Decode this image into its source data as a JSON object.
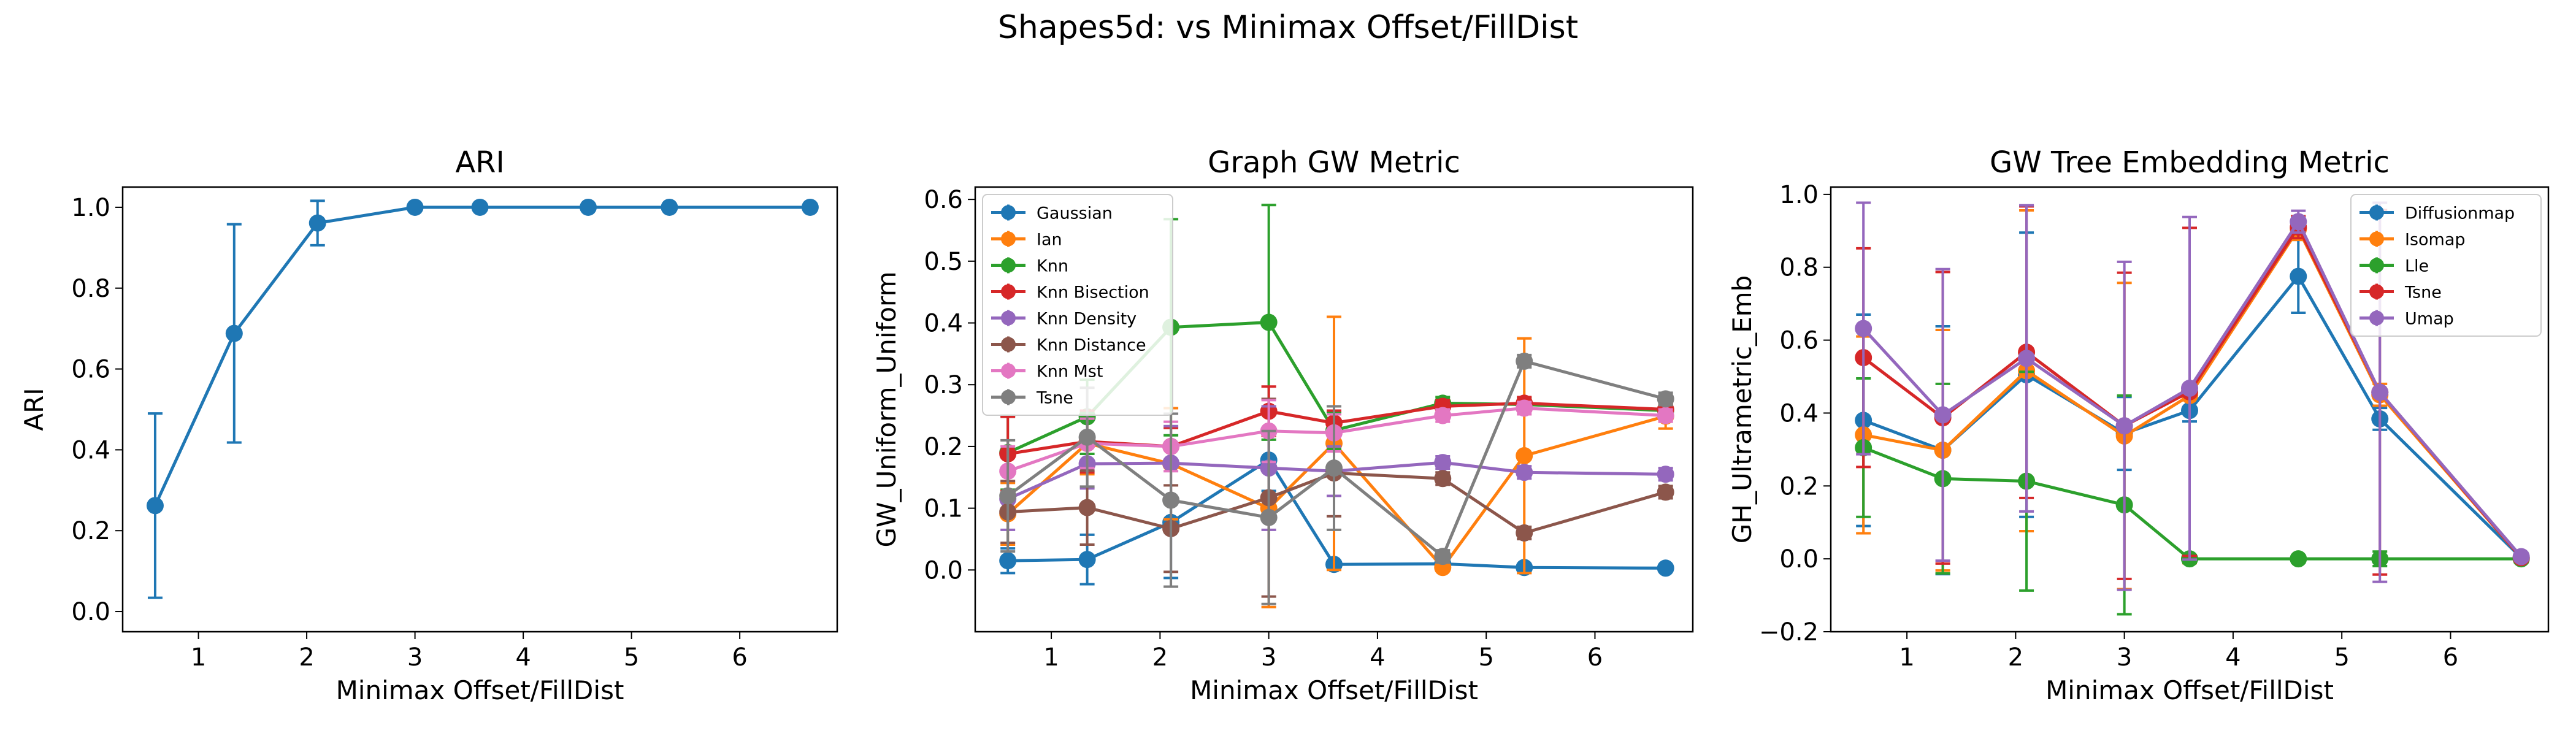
{
  "figure": {
    "suptitle": "Shapes5d: vs Minimax Offset/FillDist"
  },
  "chart_data": [
    {
      "type": "line",
      "title": "ARI",
      "xlabel": "Minimax Offset/FillDist",
      "ylabel": "ARI",
      "xlim": [
        0.3,
        6.9
      ],
      "ylim": [
        -0.05,
        1.05
      ],
      "xticks": [
        1,
        2,
        3,
        4,
        5,
        6
      ],
      "yticks": [
        0.0,
        0.2,
        0.4,
        0.6,
        0.8,
        1.0
      ],
      "ytick_format": "0.0",
      "grid": false,
      "x": [
        0.6,
        1.33,
        2.1,
        3.0,
        3.6,
        4.6,
        5.35,
        6.65
      ],
      "series": [
        {
          "name": "",
          "color": "#1f77b4",
          "values": [
            0.262,
            0.688,
            0.961,
            1.0,
            1.0,
            1.0,
            1.0,
            1.0
          ],
          "err": [
            0.228,
            0.27,
            0.055,
            0,
            0,
            0,
            0,
            0
          ]
        }
      ]
    },
    {
      "type": "line",
      "title": "Graph GW Metric",
      "xlabel": "Minimax Offset/FillDist",
      "ylabel": "GW_Uniform_Uniform",
      "xlim": [
        0.3,
        6.9
      ],
      "ylim": [
        -0.1,
        0.62
      ],
      "xticks": [
        1,
        2,
        3,
        4,
        5,
        6
      ],
      "yticks": [
        0.0,
        0.1,
        0.2,
        0.3,
        0.4,
        0.5,
        0.6
      ],
      "ytick_format": "0.0",
      "grid": false,
      "legend": "upper-left",
      "x": [
        0.6,
        1.33,
        2.1,
        3.0,
        3.6,
        4.6,
        5.35,
        6.65
      ],
      "series": [
        {
          "name": "Gaussian",
          "color": "#1f77b4",
          "values": [
            0.015,
            0.017,
            0.077,
            0.178,
            0.009,
            0.01,
            0.004,
            0.003
          ],
          "err": [
            0.02,
            0.04,
            0.09,
            0.05,
            0.005,
            0.005,
            0.003,
            0.003
          ]
        },
        {
          "name": "Ian",
          "color": "#ff7f0e",
          "values": [
            0.091,
            0.205,
            0.172,
            0.1,
            0.205,
            0.004,
            0.185,
            0.249
          ],
          "err": [
            0.05,
            0.05,
            0.09,
            0.16,
            0.205,
            0.005,
            0.19,
            0.02
          ]
        },
        {
          "name": "Knn",
          "color": "#2ca02c",
          "values": [
            0.19,
            0.248,
            0.393,
            0.401,
            0.226,
            0.27,
            0.268,
            0.258
          ],
          "err": [
            0.06,
            0.06,
            0.175,
            0.19,
            0.03,
            0.01,
            0.01,
            0.01
          ]
        },
        {
          "name": "Knn Bisection",
          "color": "#d62728",
          "values": [
            0.188,
            0.208,
            0.2,
            0.257,
            0.238,
            0.265,
            0.27,
            0.26
          ],
          "err": [
            0.06,
            0.05,
            0.03,
            0.04,
            0.02,
            0.01,
            0.01,
            0.01
          ]
        },
        {
          "name": "Knn Density",
          "color": "#9467bd",
          "values": [
            0.115,
            0.172,
            0.173,
            0.165,
            0.16,
            0.174,
            0.158,
            0.155
          ],
          "err": [
            0.05,
            0.04,
            0.06,
            0.1,
            0.04,
            0.01,
            0.01,
            0.01
          ]
        },
        {
          "name": "Knn Distance",
          "color": "#8c564b",
          "values": [
            0.094,
            0.101,
            0.067,
            0.117,
            0.157,
            0.148,
            0.06,
            0.126
          ],
          "err": [
            0.05,
            0.06,
            0.07,
            0.16,
            0.07,
            0.01,
            0.01,
            0.01
          ]
        },
        {
          "name": "Knn Mst",
          "color": "#e377c2",
          "values": [
            0.16,
            0.205,
            0.2,
            0.225,
            0.222,
            0.25,
            0.262,
            0.25
          ],
          "err": [
            0.04,
            0.04,
            0.04,
            0.05,
            0.03,
            0.01,
            0.01,
            0.01
          ]
        },
        {
          "name": "Tsne",
          "color": "#7f7f7f",
          "values": [
            0.12,
            0.215,
            0.113,
            0.085,
            0.165,
            0.022,
            0.338,
            0.277
          ],
          "err": [
            0.09,
            0.08,
            0.14,
            0.14,
            0.1,
            0.01,
            0.01,
            0.01
          ]
        }
      ]
    },
    {
      "type": "line",
      "title": "GW Tree Embedding Metric",
      "xlabel": "Minimax Offset/FillDist",
      "ylabel": "GH_Ultrametric_Emb",
      "xlim": [
        0.3,
        6.9
      ],
      "ylim": [
        -0.2,
        1.02
      ],
      "xticks": [
        1,
        2,
        3,
        4,
        5,
        6
      ],
      "yticks": [
        -0.2,
        0.0,
        0.2,
        0.4,
        0.6,
        0.8,
        1.0
      ],
      "ytick_format": "0.0",
      "grid": false,
      "legend": "upper-right",
      "x": [
        0.6,
        1.33,
        2.1,
        3.0,
        3.6,
        4.6,
        5.35,
        6.65
      ],
      "series": [
        {
          "name": "Diffusionmap",
          "color": "#1f77b4",
          "values": [
            0.38,
            0.298,
            0.505,
            0.344,
            0.407,
            0.775,
            0.384,
            0.003
          ],
          "err": [
            0.29,
            0.34,
            0.39,
            0.1,
            0.03,
            0.1,
            0.03,
            0.01
          ]
        },
        {
          "name": "Isomap",
          "color": "#ff7f0e",
          "values": [
            0.34,
            0.298,
            0.516,
            0.337,
            0.448,
            0.905,
            0.45,
            0.003
          ],
          "err": [
            0.27,
            0.33,
            0.44,
            0.42,
            0.46,
            0.03,
            0.03,
            0.01
          ]
        },
        {
          "name": "Lle",
          "color": "#2ca02c",
          "values": [
            0.305,
            0.22,
            0.213,
            0.148,
            0.0,
            0.0,
            0.0,
            0.0
          ],
          "err": [
            0.19,
            0.26,
            0.3,
            0.3,
            0.01,
            0.01,
            0.02,
            0.01
          ]
        },
        {
          "name": "Tsne",
          "color": "#d62728",
          "values": [
            0.552,
            0.387,
            0.567,
            0.365,
            0.458,
            0.91,
            0.457,
            0.003
          ],
          "err": [
            0.3,
            0.4,
            0.4,
            0.42,
            0.45,
            0.03,
            0.5,
            0.01
          ]
        },
        {
          "name": "Umap",
          "color": "#9467bd",
          "values": [
            0.632,
            0.395,
            0.55,
            0.365,
            0.468,
            0.925,
            0.457,
            0.006
          ],
          "err": [
            0.345,
            0.4,
            0.42,
            0.45,
            0.47,
            0.03,
            0.52,
            0.01
          ]
        }
      ]
    }
  ]
}
